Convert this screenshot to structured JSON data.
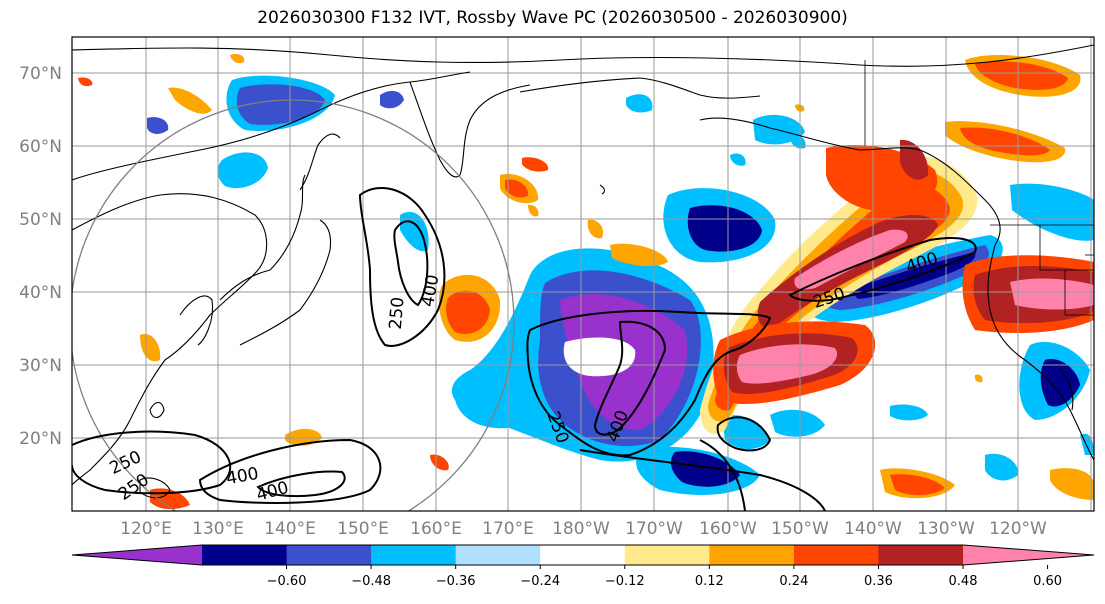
{
  "title": "2026030300 F132 IVT, Rossby Wave PC (2026030500 - 2026030900)",
  "map": {
    "lat_labels": [
      "70°N",
      "60°N",
      "50°N",
      "40°N",
      "30°N",
      "20°N"
    ],
    "lon_labels": [
      "120°E",
      "130°E",
      "140°E",
      "150°E",
      "160°E",
      "170°E",
      "180°W",
      "170°W",
      "160°W",
      "150°W",
      "140°W",
      "130°W",
      "120°W"
    ],
    "ivt_contour_labels": [
      "250",
      "400",
      "250",
      "400",
      "250",
      "400",
      "250",
      "250",
      "400",
      "400"
    ]
  },
  "colorbar": {
    "ticks": [
      "−0.60",
      "−0.48",
      "−0.36",
      "−0.24",
      "−0.12",
      "0.12",
      "0.24",
      "0.36",
      "0.48",
      "0.60"
    ],
    "colors": [
      "#9932cc",
      "#00008b",
      "#3a50cc",
      "#00bfff",
      "#b0e0ff",
      "#ffffff",
      "#ffe98a",
      "#ffa500",
      "#ff4500",
      "#b22222",
      "#ff82ab"
    ]
  }
}
